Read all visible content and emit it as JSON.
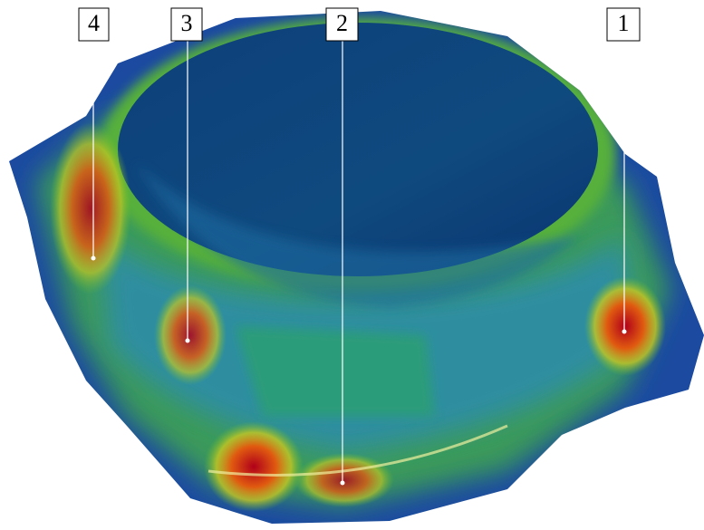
{
  "callouts": [
    {
      "label": "4"
    },
    {
      "label": "3"
    },
    {
      "label": "2"
    },
    {
      "label": "1"
    }
  ]
}
